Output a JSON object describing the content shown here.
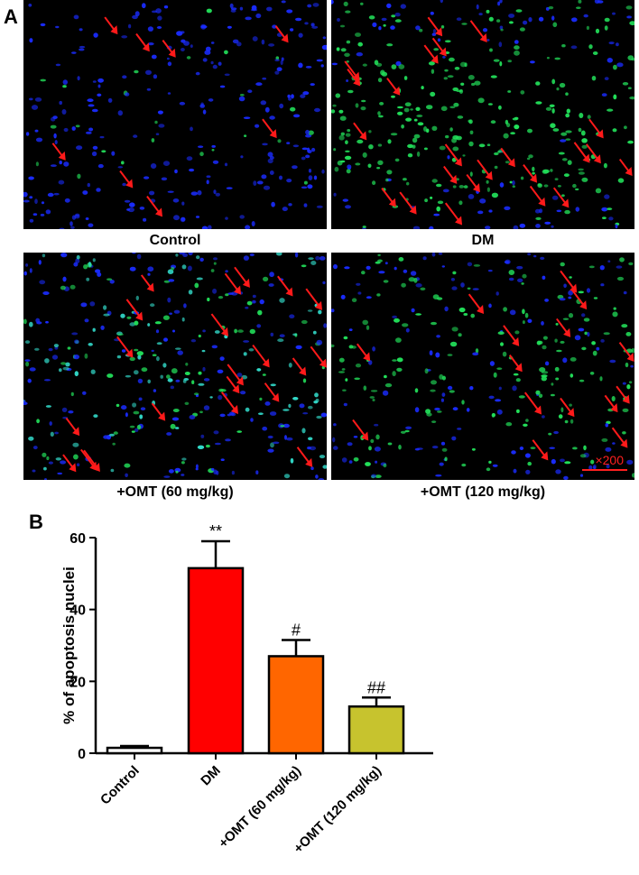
{
  "figure": {
    "panel_a_label": "A",
    "panel_b_label": "B",
    "scale_bar_label": "×200",
    "panels": [
      {
        "caption": "Control",
        "density": 0.12,
        "green": 0.1
      },
      {
        "caption": "DM",
        "density": 0.75,
        "green": 0.85
      },
      {
        "caption": "+OMT (60 mg/kg)",
        "density": 0.65,
        "green": 0.55
      },
      {
        "caption": "+OMT (120 mg/kg)",
        "density": 0.4,
        "green": 0.6
      }
    ],
    "colors": {
      "arrow": "#ff1a1a",
      "nucleus_blue": "#1a2cff",
      "nucleus_green": "#22e05a",
      "nucleus_cyan": "#33ddcc"
    }
  },
  "chart_data": {
    "type": "bar",
    "categories": [
      "Control",
      "DM",
      "+OMT (60 mg/kg)",
      "+OMT (120 mg/kg)"
    ],
    "values": [
      1.5,
      51.5,
      27,
      13
    ],
    "errors": [
      0.5,
      7.5,
      4.5,
      2.5
    ],
    "colors": [
      "#ffffff",
      "#ff0000",
      "#ff6600",
      "#c7c32e"
    ],
    "significance": [
      "",
      "**",
      "#",
      "##"
    ],
    "ylabel": "% of apoptosis nuclei",
    "xlabel": "",
    "ylim": [
      0,
      60
    ],
    "yticks": [
      0,
      20,
      40,
      60
    ],
    "grid": false,
    "title": ""
  }
}
